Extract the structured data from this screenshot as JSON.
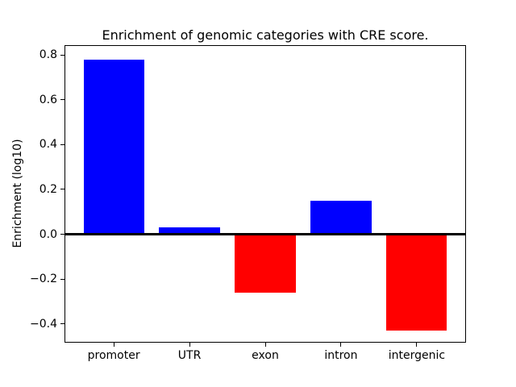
{
  "figure": {
    "title": "Enrichment of genomic categories with CRE score.",
    "ylabel": "Enrichment (log10)"
  },
  "chart_data": {
    "type": "bar",
    "title": "Enrichment of genomic categories with CRE score.",
    "xlabel": "",
    "ylabel": "Enrichment (log10)",
    "categories": [
      "promoter",
      "UTR",
      "exon",
      "intron",
      "intergenic"
    ],
    "values": [
      0.78,
      0.03,
      -0.26,
      0.15,
      -0.43
    ],
    "bar_colors": [
      "#0000ff",
      "#0000ff",
      "#ff0000",
      "#0000ff",
      "#ff0000"
    ],
    "positive_color": "#0000ff",
    "negative_color": "#ff0000",
    "bar_width": 0.8,
    "ylim": [
      -0.48,
      0.84
    ],
    "yticks": [
      0.8,
      0.6,
      0.4,
      0.2,
      0.0,
      -0.2,
      -0.4
    ],
    "ytick_labels": [
      "0.8",
      "0.6",
      "0.4",
      "0.2",
      "0.0",
      "−0.2",
      "−0.4"
    ],
    "zero_line": true,
    "grid": false,
    "legend_position": "none",
    "axis_color": "#000000",
    "background_color": "#ffffff"
  }
}
